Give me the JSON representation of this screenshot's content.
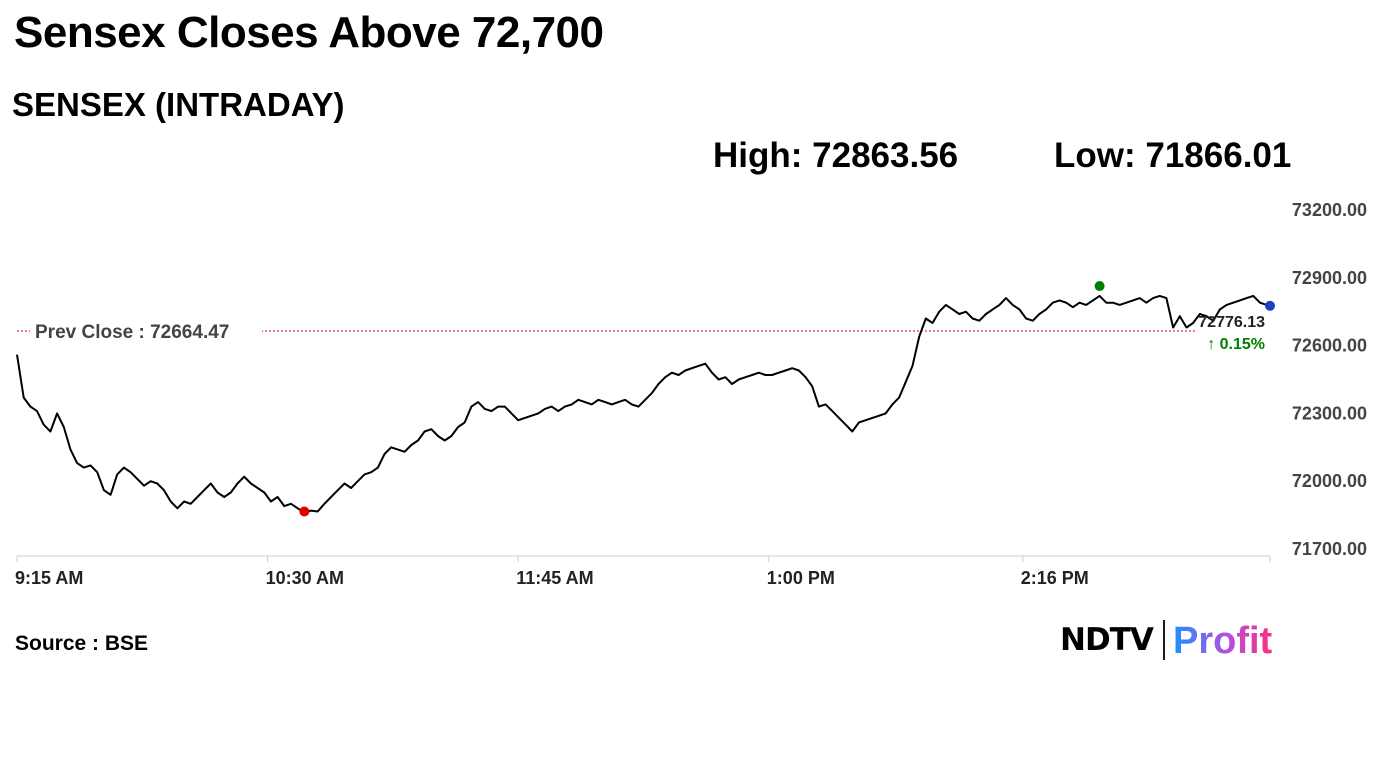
{
  "headline": "Sensex Closes Above 72,700",
  "subtitle": "SENSEX (INTRADAY)",
  "stats": {
    "high": "High: 72863.56",
    "low": "Low: 71866.01"
  },
  "source": "Source : BSE",
  "logo": {
    "left": "NDTV",
    "right": "Profit"
  },
  "colors": {
    "line": "#000000",
    "prev_close": "#cc0000",
    "high_marker": "#008000",
    "low_marker": "#e00000",
    "last_marker": "#1f3fbf",
    "change_up": "#008000",
    "axis": "#cccccc"
  },
  "chart_data": {
    "type": "line",
    "title": "SENSEX (INTRADAY)",
    "x_tick_labels": [
      "9:15 AM",
      "10:30 AM",
      "11:45 AM",
      "1:00 PM",
      "2:16 PM"
    ],
    "x_ticks_minutes_after_open": [
      0,
      75,
      150,
      225,
      301
    ],
    "x_range_minutes_after_open": [
      0,
      375
    ],
    "y_tick_labels": [
      "73200.00",
      "72900.00",
      "72600.00",
      "72300.00",
      "72000.00",
      "71700.00"
    ],
    "ylim": [
      71700,
      73200
    ],
    "prev_close_label": "Prev Close : 72664.47",
    "prev_close": 72664.47,
    "last_value_label": "72776.13",
    "change_label": "↑ 0.15%",
    "high": 72863.56,
    "low": 71866.01,
    "grid": false,
    "series": [
      {
        "points": [
          [
            0,
            72560
          ],
          [
            2,
            72370
          ],
          [
            4,
            72330
          ],
          [
            6,
            72310
          ],
          [
            8,
            72250
          ],
          [
            10,
            72220
          ],
          [
            12,
            72300
          ],
          [
            14,
            72240
          ],
          [
            16,
            72140
          ],
          [
            18,
            72080
          ],
          [
            20,
            72060
          ],
          [
            22,
            72070
          ],
          [
            24,
            72040
          ],
          [
            26,
            71960
          ],
          [
            28,
            71940
          ],
          [
            30,
            72030
          ],
          [
            32,
            72060
          ],
          [
            34,
            72040
          ],
          [
            36,
            72010
          ],
          [
            38,
            71980
          ],
          [
            40,
            72000
          ],
          [
            42,
            71990
          ],
          [
            44,
            71960
          ],
          [
            46,
            71910
          ],
          [
            48,
            71880
          ],
          [
            50,
            71910
          ],
          [
            52,
            71900
          ],
          [
            54,
            71930
          ],
          [
            56,
            71960
          ],
          [
            58,
            71990
          ],
          [
            60,
            71950
          ],
          [
            62,
            71930
          ],
          [
            64,
            71950
          ],
          [
            66,
            71990
          ],
          [
            68,
            72020
          ],
          [
            70,
            71990
          ],
          [
            72,
            71970
          ],
          [
            74,
            71950
          ],
          [
            76,
            71910
          ],
          [
            78,
            71930
          ],
          [
            80,
            71890
          ],
          [
            82,
            71900
          ],
          [
            84,
            71880
          ],
          [
            86,
            71860
          ],
          [
            88,
            71870
          ],
          [
            90,
            71866
          ],
          [
            92,
            71900
          ],
          [
            94,
            71930
          ],
          [
            96,
            71960
          ],
          [
            98,
            71990
          ],
          [
            100,
            71970
          ],
          [
            102,
            72000
          ],
          [
            104,
            72030
          ],
          [
            106,
            72040
          ],
          [
            108,
            72060
          ],
          [
            110,
            72120
          ],
          [
            112,
            72150
          ],
          [
            114,
            72140
          ],
          [
            116,
            72130
          ],
          [
            118,
            72160
          ],
          [
            120,
            72180
          ],
          [
            122,
            72220
          ],
          [
            124,
            72230
          ],
          [
            126,
            72200
          ],
          [
            128,
            72180
          ],
          [
            130,
            72200
          ],
          [
            132,
            72240
          ],
          [
            134,
            72260
          ],
          [
            136,
            72330
          ],
          [
            138,
            72350
          ],
          [
            140,
            72320
          ],
          [
            142,
            72310
          ],
          [
            144,
            72330
          ],
          [
            146,
            72330
          ],
          [
            148,
            72300
          ],
          [
            150,
            72270
          ],
          [
            152,
            72280
          ],
          [
            154,
            72290
          ],
          [
            156,
            72300
          ],
          [
            158,
            72320
          ],
          [
            160,
            72330
          ],
          [
            162,
            72310
          ],
          [
            164,
            72330
          ],
          [
            166,
            72340
          ],
          [
            168,
            72360
          ],
          [
            170,
            72350
          ],
          [
            172,
            72340
          ],
          [
            174,
            72360
          ],
          [
            176,
            72350
          ],
          [
            178,
            72340
          ],
          [
            180,
            72350
          ],
          [
            182,
            72360
          ],
          [
            184,
            72340
          ],
          [
            186,
            72330
          ],
          [
            188,
            72360
          ],
          [
            190,
            72390
          ],
          [
            192,
            72430
          ],
          [
            194,
            72460
          ],
          [
            196,
            72480
          ],
          [
            198,
            72470
          ],
          [
            200,
            72490
          ],
          [
            202,
            72500
          ],
          [
            204,
            72510
          ],
          [
            206,
            72520
          ],
          [
            208,
            72480
          ],
          [
            210,
            72450
          ],
          [
            212,
            72460
          ],
          [
            214,
            72430
          ],
          [
            216,
            72450
          ],
          [
            218,
            72460
          ],
          [
            220,
            72470
          ],
          [
            222,
            72480
          ],
          [
            224,
            72470
          ],
          [
            226,
            72470
          ],
          [
            228,
            72480
          ],
          [
            230,
            72490
          ],
          [
            232,
            72500
          ],
          [
            234,
            72490
          ],
          [
            236,
            72460
          ],
          [
            238,
            72420
          ],
          [
            240,
            72330
          ],
          [
            242,
            72340
          ],
          [
            244,
            72310
          ],
          [
            246,
            72280
          ],
          [
            248,
            72250
          ],
          [
            250,
            72220
          ],
          [
            252,
            72260
          ],
          [
            254,
            72270
          ],
          [
            256,
            72280
          ],
          [
            258,
            72290
          ],
          [
            260,
            72300
          ],
          [
            262,
            72340
          ],
          [
            264,
            72370
          ],
          [
            266,
            72440
          ],
          [
            268,
            72510
          ],
          [
            270,
            72640
          ],
          [
            272,
            72720
          ],
          [
            274,
            72700
          ],
          [
            276,
            72750
          ],
          [
            278,
            72780
          ],
          [
            280,
            72760
          ],
          [
            282,
            72740
          ],
          [
            284,
            72750
          ],
          [
            286,
            72720
          ],
          [
            288,
            72710
          ],
          [
            290,
            72740
          ],
          [
            292,
            72760
          ],
          [
            294,
            72780
          ],
          [
            296,
            72810
          ],
          [
            298,
            72780
          ],
          [
            300,
            72760
          ],
          [
            302,
            72720
          ],
          [
            304,
            72710
          ],
          [
            306,
            72740
          ],
          [
            308,
            72760
          ],
          [
            310,
            72790
          ],
          [
            312,
            72800
          ],
          [
            314,
            72790
          ],
          [
            316,
            72770
          ],
          [
            318,
            72790
          ],
          [
            320,
            72780
          ],
          [
            322,
            72800
          ],
          [
            324,
            72820
          ],
          [
            326,
            72790
          ],
          [
            328,
            72790
          ],
          [
            330,
            72780
          ],
          [
            332,
            72790
          ],
          [
            334,
            72800
          ],
          [
            336,
            72810
          ],
          [
            338,
            72790
          ],
          [
            340,
            72810
          ],
          [
            342,
            72820
          ],
          [
            344,
            72810
          ],
          [
            346,
            72680
          ],
          [
            348,
            72730
          ],
          [
            350,
            72680
          ],
          [
            352,
            72700
          ],
          [
            354,
            72740
          ],
          [
            356,
            72730
          ],
          [
            358,
            72710
          ],
          [
            360,
            72760
          ],
          [
            362,
            72780
          ],
          [
            364,
            72790
          ],
          [
            366,
            72800
          ],
          [
            368,
            72810
          ],
          [
            370,
            72820
          ],
          [
            372,
            72790
          ],
          [
            374,
            72780
          ],
          [
            375,
            72776.13
          ]
        ]
      }
    ]
  }
}
